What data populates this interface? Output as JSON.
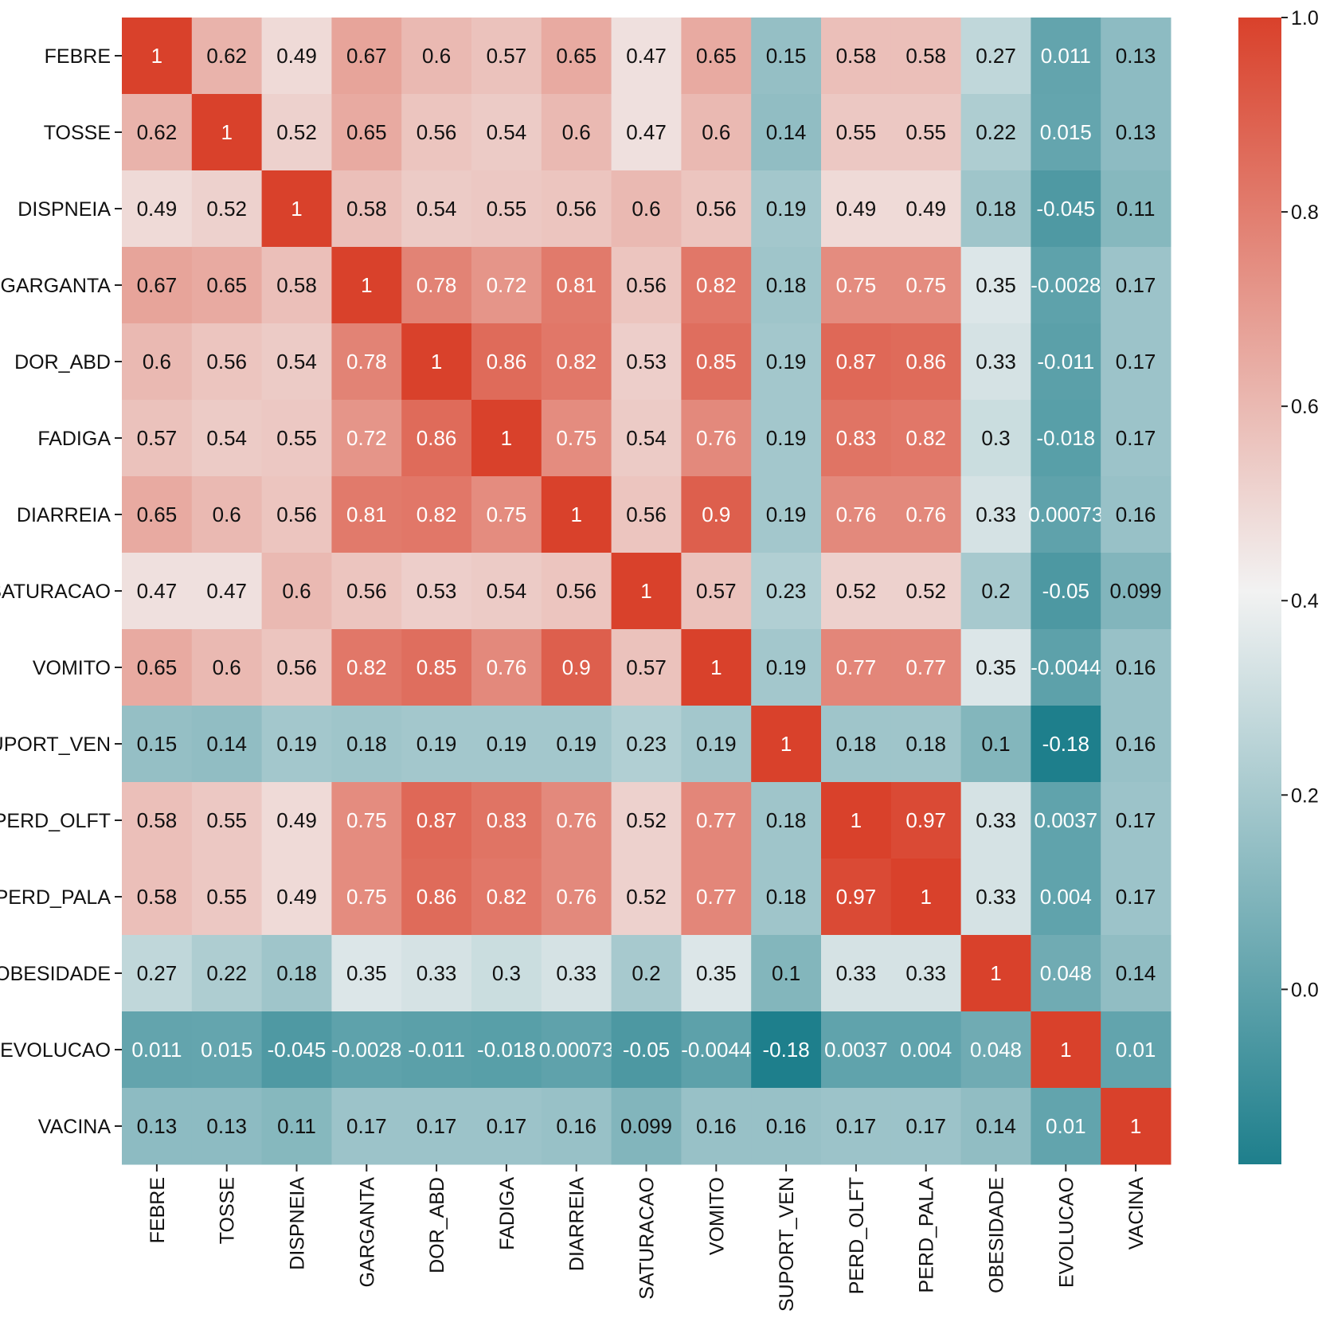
{
  "chart_data": {
    "type": "heatmap",
    "title": "",
    "xlabel": "",
    "ylabel": "",
    "variables": [
      "FEBRE",
      "TOSSE",
      "DISPNEIA",
      "GARGANTA",
      "DOR_ABD",
      "FADIGA",
      "DIARREIA",
      "SATURACAO",
      "VOMITO",
      "SUPORT_VEN",
      "PERD_OLFT",
      "PERD_PALA",
      "OBESIDADE",
      "EVOLUCAO",
      "VACINA"
    ],
    "values": [
      [
        "1",
        "0.62",
        "0.49",
        "0.67",
        "0.6",
        "0.57",
        "0.65",
        "0.47",
        "0.65",
        "0.15",
        "0.58",
        "0.58",
        "0.27",
        "0.011",
        "0.13"
      ],
      [
        "0.62",
        "1",
        "0.52",
        "0.65",
        "0.56",
        "0.54",
        "0.6",
        "0.47",
        "0.6",
        "0.14",
        "0.55",
        "0.55",
        "0.22",
        "0.015",
        "0.13"
      ],
      [
        "0.49",
        "0.52",
        "1",
        "0.58",
        "0.54",
        "0.55",
        "0.56",
        "0.6",
        "0.56",
        "0.19",
        "0.49",
        "0.49",
        "0.18",
        "-0.045",
        "0.11"
      ],
      [
        "0.67",
        "0.65",
        "0.58",
        "1",
        "0.78",
        "0.72",
        "0.81",
        "0.56",
        "0.82",
        "0.18",
        "0.75",
        "0.75",
        "0.35",
        "-0.0028",
        "0.17"
      ],
      [
        "0.6",
        "0.56",
        "0.54",
        "0.78",
        "1",
        "0.86",
        "0.82",
        "0.53",
        "0.85",
        "0.19",
        "0.87",
        "0.86",
        "0.33",
        "-0.011",
        "0.17"
      ],
      [
        "0.57",
        "0.54",
        "0.55",
        "0.72",
        "0.86",
        "1",
        "0.75",
        "0.54",
        "0.76",
        "0.19",
        "0.83",
        "0.82",
        "0.3",
        "-0.018",
        "0.17"
      ],
      [
        "0.65",
        "0.6",
        "0.56",
        "0.81",
        "0.82",
        "0.75",
        "1",
        "0.56",
        "0.9",
        "0.19",
        "0.76",
        "0.76",
        "0.33",
        "0.00073",
        "0.16"
      ],
      [
        "0.47",
        "0.47",
        "0.6",
        "0.56",
        "0.53",
        "0.54",
        "0.56",
        "1",
        "0.57",
        "0.23",
        "0.52",
        "0.52",
        "0.2",
        "-0.05",
        "0.099"
      ],
      [
        "0.65",
        "0.6",
        "0.56",
        "0.82",
        "0.85",
        "0.76",
        "0.9",
        "0.57",
        "1",
        "0.19",
        "0.77",
        "0.77",
        "0.35",
        "-0.0044",
        "0.16"
      ],
      [
        "0.15",
        "0.14",
        "0.19",
        "0.18",
        "0.19",
        "0.19",
        "0.19",
        "0.23",
        "0.19",
        "1",
        "0.18",
        "0.18",
        "0.1",
        "-0.18",
        "0.16"
      ],
      [
        "0.58",
        "0.55",
        "0.49",
        "0.75",
        "0.87",
        "0.83",
        "0.76",
        "0.52",
        "0.77",
        "0.18",
        "1",
        "0.97",
        "0.33",
        "0.0037",
        "0.17"
      ],
      [
        "0.58",
        "0.55",
        "0.49",
        "0.75",
        "0.86",
        "0.82",
        "0.76",
        "0.52",
        "0.77",
        "0.18",
        "0.97",
        "1",
        "0.33",
        "0.004",
        "0.17"
      ],
      [
        "0.27",
        "0.22",
        "0.18",
        "0.35",
        "0.33",
        "0.3",
        "0.33",
        "0.2",
        "0.35",
        "0.1",
        "0.33",
        "0.33",
        "1",
        "0.048",
        "0.14"
      ],
      [
        "0.011",
        "0.015",
        "-0.045",
        "-0.0028",
        "-0.011",
        "-0.018",
        "0.00073",
        "-0.05",
        "-0.0044",
        "-0.18",
        "0.0037",
        "0.004",
        "0.048",
        "1",
        "0.01"
      ],
      [
        "0.13",
        "0.13",
        "0.11",
        "0.17",
        "0.17",
        "0.17",
        "0.16",
        "0.099",
        "0.16",
        "0.16",
        "0.17",
        "0.17",
        "0.14",
        "0.01",
        "1"
      ]
    ],
    "colorbar": {
      "min": -0.18,
      "max": 1.0,
      "ticks": [
        "1.0",
        "0.8",
        "0.6",
        "0.4",
        "0.2",
        "0.0"
      ],
      "tick_values": [
        1.0,
        0.8,
        0.6,
        0.4,
        0.2,
        0.0
      ],
      "colors": {
        "low": "#1e7f8c",
        "mid": "#f2f2f2",
        "high": "#d9412b"
      },
      "mid_value": 0.41
    },
    "grid": false,
    "legend": "colorbar-right"
  }
}
